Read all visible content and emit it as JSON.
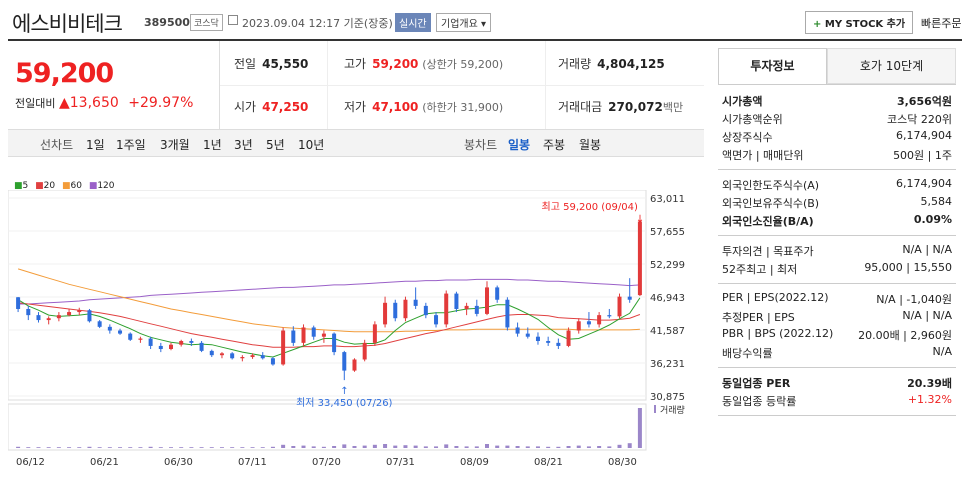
{
  "header": {
    "name": "에스비비테크",
    "code": "389500",
    "market": "코스닥",
    "datetime": "2023.09.04 12:17 기준(장중)",
    "realtime": "실시간",
    "overview": "기업개요",
    "mystock": "MY STOCK 추가",
    "quick_order": "빠른주문"
  },
  "price": {
    "current": "59,200",
    "change_label": "전일대비",
    "change": "13,650",
    "change_pct": "+29.97%"
  },
  "quote": {
    "prev_label": "전일",
    "prev": "45,550",
    "high_label": "고가",
    "high": "59,200",
    "upper_limit": "(상한가 59,200)",
    "vol_label": "거래량",
    "vol": "4,804,125",
    "open_label": "시가",
    "open": "47,250",
    "low_label": "저가",
    "low": "47,100",
    "lower_limit": "(하한가 31,900)",
    "amt_label": "거래대금",
    "amt": "270,072",
    "amt_unit": "백만"
  },
  "periods": {
    "label": "선차트",
    "items": [
      "1일",
      "1주일",
      "3개월",
      "1년",
      "3년",
      "5년",
      "10년"
    ],
    "candle_label": "봉차트",
    "candle_items": [
      "일봉",
      "주봉",
      "월봉"
    ]
  },
  "legend": [
    "5",
    "20",
    "60",
    "120"
  ],
  "colors": {
    "ma5": "#2ea02e",
    "ma20": "#e04040",
    "ma60": "#f39c3a",
    "ma120": "#9a60c8",
    "up": "#e23a3a",
    "down": "#2e6ddc"
  },
  "chart_data": {
    "type": "candlestick",
    "x_labels": [
      "06/12",
      "06/21",
      "06/30",
      "07/11",
      "07/20",
      "07/31",
      "08/09",
      "08/21",
      "08/30"
    ],
    "y_ticks": [
      63011,
      57655,
      52299,
      46943,
      41587,
      36231,
      30875
    ],
    "ylim": [
      30875,
      63011
    ],
    "annot_high": "최고 59,200 (09/04)",
    "annot_low": "최저 33,450 (07/26)",
    "volume_label": "거래량",
    "candles": [
      [
        46900,
        46943,
        44500,
        45000
      ],
      [
        45000,
        45500,
        43200,
        44000
      ],
      [
        44000,
        44500,
        42800,
        43200
      ],
      [
        43200,
        43800,
        42500,
        43500
      ],
      [
        43500,
        44500,
        43000,
        44000
      ],
      [
        44000,
        45000,
        43800,
        44500
      ],
      [
        44500,
        45200,
        44000,
        44800
      ],
      [
        44800,
        45000,
        42800,
        43000
      ],
      [
        43000,
        43200,
        41900,
        42100
      ],
      [
        42100,
        42500,
        41000,
        41500
      ],
      [
        41500,
        41800,
        40800,
        41000
      ],
      [
        41000,
        41200,
        39800,
        40000
      ],
      [
        40000,
        40500,
        39500,
        40200
      ],
      [
        40200,
        40500,
        38500,
        39000
      ],
      [
        39000,
        39500,
        38000,
        38500
      ],
      [
        38500,
        39500,
        38300,
        39200
      ],
      [
        39200,
        40000,
        38900,
        39800
      ],
      [
        39800,
        40200,
        39000,
        39500
      ],
      [
        39500,
        39800,
        38000,
        38200
      ],
      [
        38200,
        38400,
        37200,
        37500
      ],
      [
        37500,
        38000,
        37000,
        37800
      ],
      [
        37800,
        38000,
        36800,
        37000
      ],
      [
        37000,
        37500,
        36500,
        37200
      ],
      [
        37200,
        37800,
        36900,
        37500
      ],
      [
        37500,
        38000,
        36800,
        37000
      ],
      [
        37000,
        37200,
        35800,
        36000
      ],
      [
        36000,
        42000,
        35800,
        41500
      ],
      [
        41500,
        42200,
        39000,
        39500
      ],
      [
        39500,
        42500,
        39000,
        42000
      ],
      [
        42000,
        42300,
        40000,
        40500
      ],
      [
        40500,
        41500,
        39500,
        41000
      ],
      [
        41000,
        41200,
        37500,
        38000
      ],
      [
        38000,
        38200,
        33450,
        35000
      ],
      [
        35000,
        37000,
        34800,
        36800
      ],
      [
        36800,
        40000,
        36500,
        39500
      ],
      [
        39500,
        43000,
        39000,
        42500
      ],
      [
        42500,
        47000,
        42000,
        46000
      ],
      [
        46000,
        46500,
        43000,
        43500
      ],
      [
        43500,
        47000,
        43000,
        46500
      ],
      [
        46500,
        48500,
        45000,
        45500
      ],
      [
        45500,
        46000,
        43500,
        44000
      ],
      [
        44000,
        44500,
        42000,
        42500
      ],
      [
        42500,
        48000,
        42000,
        47500
      ],
      [
        47500,
        47800,
        44500,
        45000
      ],
      [
        45000,
        46000,
        44000,
        45500
      ],
      [
        45500,
        46500,
        43800,
        44200
      ],
      [
        44200,
        49500,
        44000,
        48500
      ],
      [
        48500,
        48800,
        46000,
        46500
      ],
      [
        46500,
        46900,
        41500,
        42000
      ],
      [
        42000,
        42800,
        40500,
        41000
      ],
      [
        41000,
        42000,
        40200,
        40500
      ],
      [
        40500,
        41200,
        39200,
        39800
      ],
      [
        39800,
        40500,
        39000,
        39500
      ],
      [
        39500,
        40200,
        38500,
        39000
      ],
      [
        39000,
        42000,
        38800,
        41500
      ],
      [
        41500,
        43500,
        41000,
        43000
      ],
      [
        43000,
        44500,
        42000,
        42500
      ],
      [
        42500,
        44500,
        42000,
        44000
      ],
      [
        44000,
        45000,
        43500,
        43800
      ],
      [
        43800,
        47500,
        43500,
        47000
      ],
      [
        47000,
        50000,
        46000,
        46500
      ],
      [
        47250,
        59200,
        47100,
        59200
      ]
    ],
    "volumes": [
      3,
      2,
      2,
      2,
      2,
      2,
      2,
      3,
      2,
      2,
      2,
      2,
      2,
      3,
      2,
      2,
      2,
      2,
      2,
      2,
      2,
      2,
      2,
      2,
      2,
      3,
      8,
      5,
      6,
      4,
      3,
      5,
      9,
      5,
      6,
      8,
      10,
      6,
      7,
      6,
      4,
      4,
      9,
      5,
      4,
      4,
      10,
      6,
      6,
      5,
      4,
      4,
      3,
      3,
      5,
      6,
      4,
      5,
      4,
      8,
      12,
      100
    ],
    "ma5": [
      46500,
      45500,
      44800,
      44000,
      43800,
      43900,
      44000,
      44200,
      43800,
      43200,
      42500,
      41800,
      41000,
      40400,
      40000,
      39600,
      39400,
      39200,
      39300,
      39200,
      38800,
      38400,
      38000,
      37700,
      37400,
      37200,
      37800,
      38400,
      39000,
      39600,
      40200,
      40200,
      39600,
      39300,
      39400,
      39400,
      40000,
      41500,
      42800,
      43500,
      44200,
      44400,
      44400,
      44700,
      45000,
      45100,
      45300,
      45700,
      45700,
      45000,
      44200,
      43300,
      42000,
      40800,
      40100,
      40200,
      40900,
      41600,
      42400,
      43400,
      44300,
      46800
    ],
    "ma20": [
      46000,
      45800,
      45600,
      45400,
      45200,
      45000,
      44800,
      44600,
      44400,
      44100,
      43800,
      43400,
      43000,
      42600,
      42200,
      41800,
      41400,
      41000,
      40700,
      40400,
      40100,
      39800,
      39500,
      39200,
      39000,
      38800,
      38800,
      38800,
      38900,
      38900,
      39000,
      39000,
      38900,
      38900,
      39000,
      39100,
      39400,
      39800,
      40200,
      40600,
      41000,
      41300,
      41700,
      42100,
      42500,
      42900,
      43300,
      43700,
      44000,
      44100,
      44100,
      44000,
      43900,
      43600,
      43500,
      43400,
      43300,
      43200,
      43200,
      43300,
      43500,
      44100
    ],
    "ma60": [
      51500,
      51000,
      50500,
      50000,
      49500,
      49000,
      48600,
      48200,
      47800,
      47400,
      47000,
      46600,
      46200,
      45800,
      45400,
      45000,
      44700,
      44400,
      44100,
      43800,
      43500,
      43200,
      42900,
      42600,
      42400,
      42200,
      42000,
      41900,
      41800,
      41700,
      41600,
      41500,
      41400,
      41300,
      41300,
      41300,
      41300,
      41300,
      41400,
      41400,
      41500,
      41500,
      41600,
      41600,
      41600,
      41700,
      41700,
      41700,
      41700,
      41700,
      41700,
      41700,
      41700,
      41700,
      41700,
      41600,
      41600,
      41600,
      41600,
      41600,
      41600,
      41700
    ],
    "ma120": [
      45800,
      45800,
      45900,
      46000,
      46100,
      46200,
      46300,
      46500,
      46600,
      46700,
      46800,
      46900,
      47000,
      47200,
      47300,
      47400,
      47500,
      47600,
      47700,
      47800,
      47900,
      48000,
      48100,
      48200,
      48300,
      48400,
      48500,
      48500,
      48600,
      48700,
      48800,
      48900,
      48900,
      49000,
      49100,
      49200,
      49300,
      49400,
      49500,
      49500,
      49600,
      49600,
      49700,
      49700,
      49700,
      49800,
      49800,
      49800,
      49800,
      49700,
      49700,
      49600,
      49500,
      49500,
      49400,
      49300,
      49200,
      49100,
      49000,
      48900,
      48800,
      48900
    ]
  },
  "right": {
    "tab_on": "투자정보",
    "tab_off": "호가 10단계",
    "rows1": [
      [
        "시가총액",
        "3,656억원"
      ],
      [
        "시가총액순위",
        "코스닥 220위"
      ],
      [
        "상장주식수",
        "6,174,904"
      ],
      [
        "액면가 | 매매단위",
        "500원 | 1주"
      ]
    ],
    "rows2": [
      [
        "외국인한도주식수(A)",
        "6,174,904"
      ],
      [
        "외국인보유주식수(B)",
        "5,584"
      ],
      [
        "외국인소진율(B/A)",
        "0.09%"
      ]
    ],
    "rows3": [
      [
        "투자의견 | 목표주가",
        "N/A | N/A"
      ],
      [
        "52주최고 | 최저",
        "95,000 | 15,550"
      ]
    ],
    "rows4": [
      [
        "PER | EPS(2022.12)",
        "N/A | -1,040원"
      ],
      [
        "추정PER | EPS",
        "N/A | N/A"
      ],
      [
        "PBR | BPS (2022.12)",
        "20.00배 | 2,960원"
      ],
      [
        "배당수익률",
        "N/A"
      ]
    ],
    "rows5": [
      [
        "동일업종 PER",
        "20.39배"
      ],
      [
        "동일업종 등락률",
        "+1.32%"
      ]
    ]
  }
}
